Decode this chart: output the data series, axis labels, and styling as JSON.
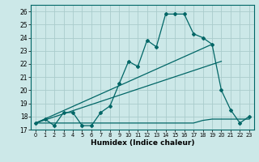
{
  "xlabel": "Humidex (Indice chaleur)",
  "bg_color": "#cce8e8",
  "grid_color": "#aacccc",
  "line_color": "#006666",
  "xlim": [
    -0.5,
    23.5
  ],
  "ylim": [
    17.0,
    26.5
  ],
  "xticks": [
    0,
    1,
    2,
    3,
    4,
    5,
    6,
    7,
    8,
    9,
    10,
    11,
    12,
    13,
    14,
    15,
    16,
    17,
    18,
    19,
    20,
    21,
    22,
    23
  ],
  "yticks": [
    17,
    18,
    19,
    20,
    21,
    22,
    23,
    24,
    25,
    26
  ],
  "series_main": {
    "x": [
      0,
      1,
      2,
      3,
      4,
      5,
      6,
      7,
      8,
      9,
      10,
      11,
      12,
      13,
      14,
      15,
      16,
      17,
      18,
      19,
      20,
      21,
      22,
      23
    ],
    "y": [
      17.5,
      17.8,
      17.3,
      18.3,
      18.3,
      17.3,
      17.3,
      18.3,
      18.8,
      20.5,
      22.2,
      21.8,
      23.8,
      23.3,
      25.8,
      25.8,
      25.8,
      24.3,
      24.0,
      23.5,
      20.0,
      18.5,
      17.5,
      18.0
    ]
  },
  "series_flat": {
    "x": [
      0,
      9,
      10,
      11,
      12,
      13,
      14,
      15,
      16,
      17,
      18,
      19,
      20,
      21,
      22,
      23
    ],
    "y": [
      17.5,
      17.5,
      17.5,
      17.5,
      17.5,
      17.5,
      17.5,
      17.5,
      17.5,
      17.5,
      17.7,
      17.8,
      17.8,
      17.8,
      17.8,
      17.8
    ]
  },
  "trend1_x": [
    0,
    19
  ],
  "trend1_y": [
    17.5,
    23.5
  ],
  "trend2_x": [
    0,
    20
  ],
  "trend2_y": [
    17.5,
    22.2
  ]
}
